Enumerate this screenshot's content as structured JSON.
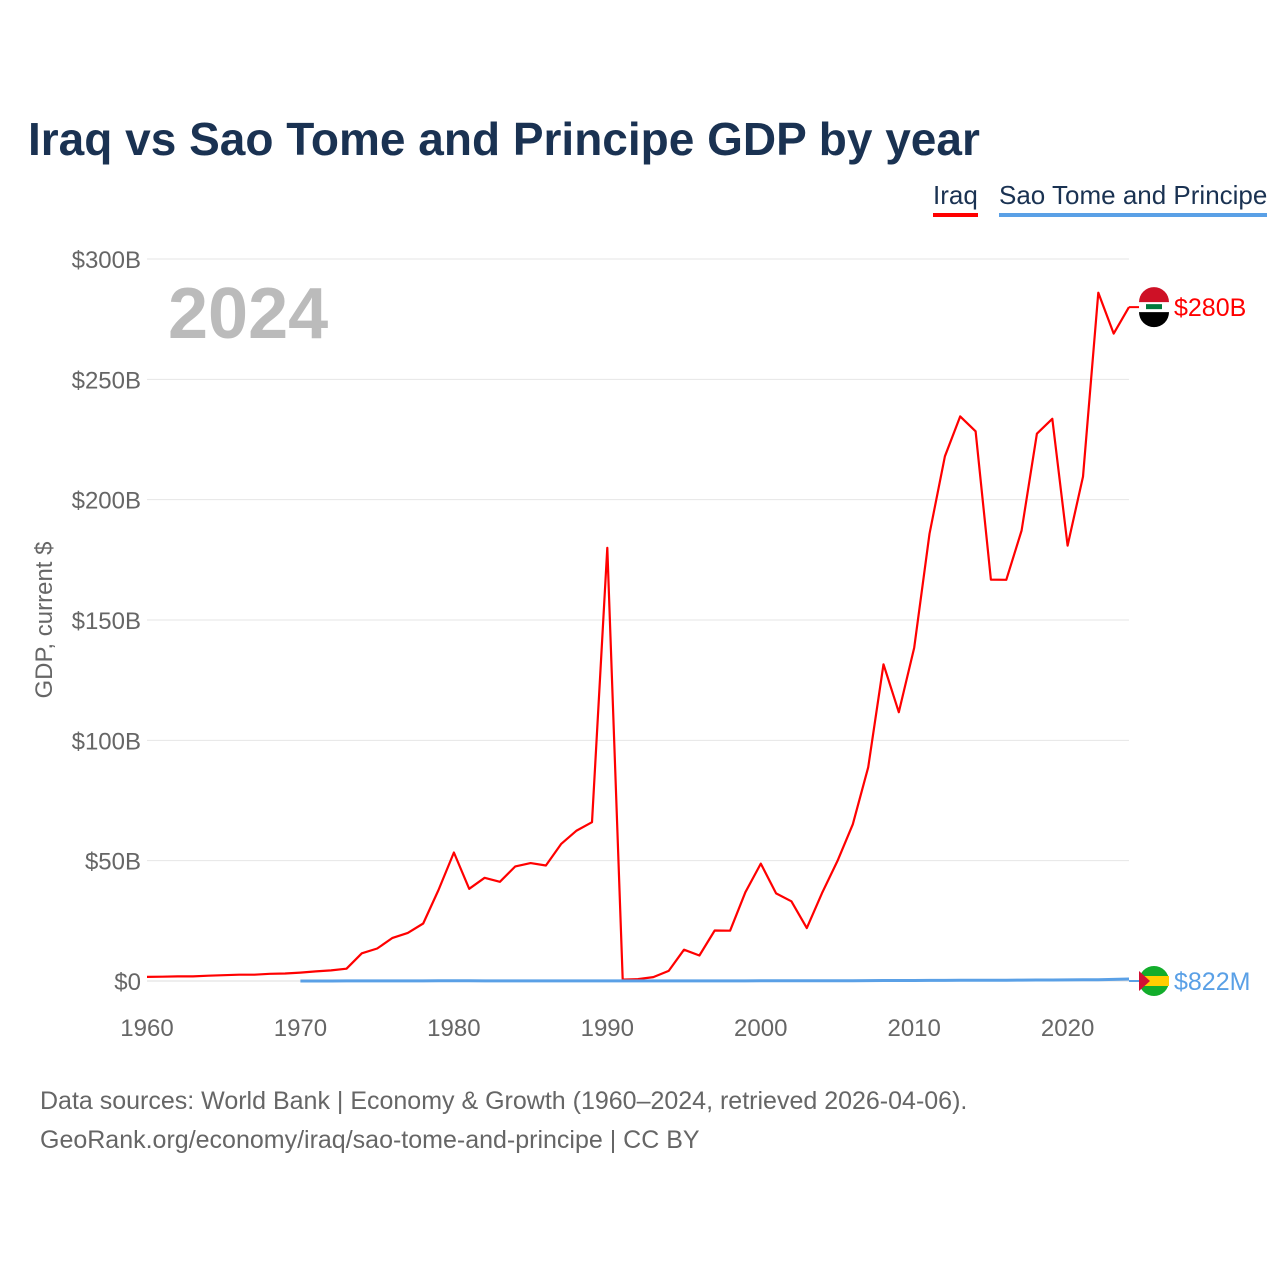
{
  "title": "Iraq vs Sao Tome and Principe GDP by year",
  "footer": [
    "Data sources: World Bank | Economy & Growth (1960–2024, retrieved 2026-04-06).",
    "GeoRank.org/economy/iraq/sao-tome-and-principe | CC BY"
  ],
  "chart_data": {
    "type": "line",
    "title": "Iraq vs Sao Tome and Principe GDP by year",
    "ylabel": "GDP, current $",
    "xlabel": "",
    "year_label": "2024",
    "xlim": [
      1960,
      2024
    ],
    "ylim": [
      0,
      300
    ],
    "x_ticks": [
      1960,
      1970,
      1980,
      1990,
      2000,
      2010,
      2020
    ],
    "y_ticks": [
      {
        "v": 0,
        "label": "$0"
      },
      {
        "v": 50,
        "label": "$50B"
      },
      {
        "v": 100,
        "label": "$100B"
      },
      {
        "v": 150,
        "label": "$150B"
      },
      {
        "v": 200,
        "label": "$200B"
      },
      {
        "v": 250,
        "label": "$250B"
      },
      {
        "v": 300,
        "label": "$300B"
      }
    ],
    "legend_position": "top-right",
    "series": [
      {
        "name": "Iraq",
        "color": "#ff0000",
        "end_label": "$280B",
        "start": 1960,
        "values": [
          1.7,
          1.8,
          1.9,
          1.9,
          2.2,
          2.4,
          2.6,
          2.6,
          3.0,
          3.1,
          3.5,
          4.0,
          4.4,
          5.1,
          11.5,
          13.5,
          17.9,
          20.0,
          23.9,
          37.8,
          53.4,
          38.3,
          42.9,
          41.2,
          47.6,
          49.0,
          48.0,
          57.0,
          62.5,
          66.0,
          180.0,
          0.6,
          0.8,
          1.6,
          4.2,
          13.0,
          10.6,
          21.0,
          20.9,
          36.9,
          48.8,
          36.4,
          33.1,
          22.0,
          36.6,
          49.9,
          65.1,
          88.8,
          131.6,
          111.7,
          138.5,
          185.8,
          218.0,
          234.6,
          228.4,
          166.8,
          166.7,
          187.2,
          227.4,
          233.6,
          180.9,
          209.6,
          286.0,
          269.0,
          280.0
        ]
      },
      {
        "name": "Sao Tome and Principe",
        "color": "#5aa0e6",
        "end_label": "$822M",
        "start": 1970,
        "values": [
          0.02,
          0.02,
          0.02,
          0.03,
          0.04,
          0.04,
          0.04,
          0.05,
          0.06,
          0.07,
          0.08,
          0.07,
          0.06,
          0.06,
          0.05,
          0.05,
          0.05,
          0.06,
          0.06,
          0.06,
          0.06,
          0.06,
          0.05,
          0.05,
          0.05,
          0.05,
          0.05,
          0.05,
          0.05,
          0.05,
          0.08,
          0.08,
          0.09,
          0.1,
          0.11,
          0.13,
          0.14,
          0.15,
          0.2,
          0.2,
          0.2,
          0.25,
          0.26,
          0.3,
          0.35,
          0.32,
          0.34,
          0.38,
          0.41,
          0.43,
          0.47,
          0.53,
          0.55,
          0.68,
          0.822
        ]
      }
    ]
  }
}
